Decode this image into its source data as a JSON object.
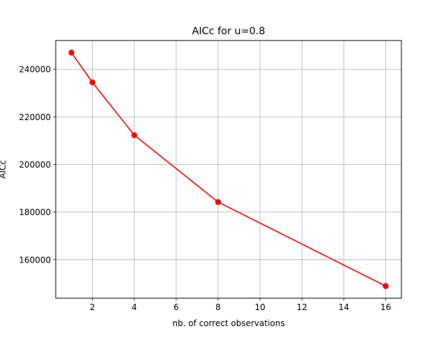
{
  "chart_data": {
    "type": "line",
    "title": "AICc for u=0.8",
    "xlabel": "nb. of correct observations",
    "ylabel": "AICc",
    "x": [
      1,
      2,
      4,
      8,
      16
    ],
    "series": [
      {
        "values": [
          247000,
          234500,
          212300,
          184200,
          148900
        ],
        "color": "#ff0000",
        "marker": "circle"
      }
    ],
    "xlim": [
      0.25,
      16.75
    ],
    "ylim": [
      143800,
      252100
    ],
    "xticks": [
      2,
      4,
      6,
      8,
      10,
      12,
      14,
      16
    ],
    "xtick_labels": [
      "2",
      "4",
      "6",
      "8",
      "10",
      "12",
      "14",
      "16"
    ],
    "yticks": [
      160000,
      180000,
      200000,
      220000,
      240000
    ],
    "ytick_labels": [
      "160000",
      "180000",
      "200000",
      "220000",
      "240000"
    ],
    "grid": true,
    "grid_color": "#b0b0b0"
  }
}
